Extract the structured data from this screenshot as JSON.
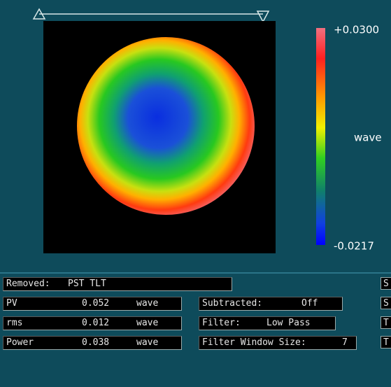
{
  "image_panel": {
    "colorbar": {
      "max_label": "+0.0300",
      "unit": "wave",
      "min_label": "-0.0217"
    }
  },
  "results": {
    "removed": {
      "label": "Removed:",
      "value": "PST TLT"
    },
    "rows": [
      {
        "label": "PV",
        "value": "0.052",
        "unit": "wave"
      },
      {
        "label": "rms",
        "value": "0.012",
        "unit": "wave"
      },
      {
        "label": "Power",
        "value": "0.038",
        "unit": "wave"
      }
    ]
  },
  "settings": [
    {
      "label": "Subtracted:",
      "value": "Off"
    },
    {
      "label": "Filter:",
      "value": "Low Pass"
    },
    {
      "label": "Filter Window Size:",
      "value": "7"
    }
  ],
  "side_buttons": [
    "S",
    "S",
    "T",
    "T"
  ]
}
